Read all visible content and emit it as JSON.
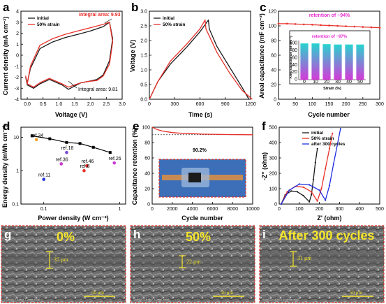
{
  "colors": {
    "initial": "#1a1a1a",
    "strain": "#e8312a",
    "after": "#1f2fe0",
    "retention": "#e82fd0",
    "bars_top": "#26d4d0",
    "bars_bottom": "#d43ad8",
    "sem_text": "#f5e62a",
    "sem_border": "#e8312a"
  },
  "panels": {
    "a": "a",
    "b": "b",
    "c": "c",
    "d": "d",
    "e": "e",
    "f": "f",
    "g": "g",
    "h": "h",
    "i": "i"
  },
  "chart_data": [
    {
      "id": "a",
      "type": "line",
      "xlabel": "Voltage (V)",
      "ylabel": "Current density (mA cm⁻²)",
      "xlim": [
        -0.2,
        3.0
      ],
      "ylim": [
        -4,
        4
      ],
      "xticks": [
        "0.0",
        "0.5",
        "1.0",
        "1.5",
        "2.0",
        "2.5",
        "3.0"
      ],
      "yticks": [
        "-4",
        "-3",
        "-2",
        "-1",
        "0",
        "1",
        "2",
        "3",
        "4"
      ],
      "legend": [
        "initial",
        "50% strain"
      ],
      "annotations": [
        "Integral area: 9.93",
        "Integral area: 9.81"
      ],
      "series": [
        {
          "name": "initial",
          "x": [
            0,
            0.1,
            0.4,
            0.8,
            1.2,
            1.6,
            2.0,
            2.4,
            2.6,
            2.7,
            2.6,
            2.4,
            2.2,
            1.9,
            1.7,
            1.5,
            1.3,
            1.1,
            0.7,
            0.4,
            0.2,
            0,
            -0.05,
            0
          ],
          "y": [
            -2.5,
            -1.2,
            0.6,
            1.2,
            1.6,
            1.9,
            2.2,
            2.6,
            3.0,
            1.5,
            -0.5,
            -1.8,
            -2.2,
            -2.4,
            -2.5,
            -2.8,
            -3.1,
            -2.7,
            -2.2,
            -2.6,
            -3.0,
            -2.7,
            -2.0,
            -2.5
          ]
        },
        {
          "name": "50% strain",
          "x": [
            0,
            0.1,
            0.4,
            0.8,
            1.2,
            1.6,
            2.0,
            2.4,
            2.6,
            2.7,
            2.6,
            2.4,
            2.2,
            1.9,
            1.7,
            1.5,
            1.3,
            1.1,
            0.7,
            0.4,
            0.2,
            0,
            -0.05,
            0
          ],
          "y": [
            -2.6,
            -1.0,
            0.9,
            1.5,
            1.9,
            2.2,
            2.5,
            2.8,
            3.0,
            1.2,
            -0.8,
            -1.9,
            -2.3,
            -2.4,
            -2.5,
            -2.7,
            -2.9,
            -2.6,
            -2.1,
            -2.5,
            -2.9,
            -2.6,
            -1.9,
            -2.6
          ]
        }
      ]
    },
    {
      "id": "b",
      "type": "line",
      "xlabel": "Time (s)",
      "ylabel": "Voltage (V)",
      "xlim": [
        0,
        1200
      ],
      "ylim": [
        0,
        3.0
      ],
      "xticks": [
        "0",
        "300",
        "600",
        "900",
        "1200"
      ],
      "yticks": [
        "0.0",
        "0.5",
        "1.0",
        "1.5",
        "2.0",
        "2.5",
        "3.0"
      ],
      "legend": [
        "initial",
        "50% strain"
      ],
      "series": [
        {
          "name": "initial",
          "x": [
            0,
            100,
            250,
            450,
            600,
            700,
            710,
            800,
            950,
            1100,
            1180
          ],
          "y": [
            0,
            0.6,
            1.2,
            1.8,
            2.3,
            2.7,
            2.4,
            1.8,
            1.1,
            0.4,
            0
          ]
        },
        {
          "name": "50% strain",
          "x": [
            0,
            100,
            250,
            450,
            600,
            660,
            670,
            800,
            950,
            1100,
            1220
          ],
          "y": [
            0,
            0.6,
            1.3,
            1.9,
            2.4,
            2.7,
            2.4,
            1.6,
            0.9,
            0.3,
            0
          ]
        }
      ]
    },
    {
      "id": "c",
      "type": "line",
      "xlabel": "Cycle number",
      "ylabel": "Areal capacitance (mF cm⁻²)",
      "xlim": [
        0,
        300
      ],
      "ylim": [
        0,
        120
      ],
      "xticks": [
        "0",
        "50",
        "100",
        "150",
        "200",
        "250",
        "300"
      ],
      "yticks": [
        "0",
        "20",
        "40",
        "60",
        "80",
        "100",
        "120"
      ],
      "annotations": [
        "retention of ~94%"
      ],
      "series": [
        {
          "name": "",
          "x": [
            0,
            25,
            50,
            75,
            100,
            125,
            150,
            175,
            200,
            225,
            250,
            275,
            300
          ],
          "y": [
            103,
            103,
            102.5,
            102,
            101.5,
            101,
            100.5,
            100,
            99.5,
            99,
            98.5,
            98,
            97.5
          ]
        }
      ],
      "inset": {
        "type": "bar",
        "xlabel": "Strain (%)",
        "ylabel": "Areal capacitance (mF cm⁻²)",
        "annotation": "retention of ~97%",
        "categories": [
          "0",
          "10",
          "20",
          "30",
          "40",
          "50"
        ],
        "values": [
          100,
          100,
          98,
          97,
          97,
          97
        ],
        "ylim": [
          0,
          100
        ],
        "yticks": [
          "0",
          "20",
          "40",
          "60",
          "80",
          "100"
        ]
      }
    },
    {
      "id": "d",
      "type": "scatter",
      "xlabel": "Power density (W cm⁻³)",
      "ylabel": "Energy density (mWh cm⁻³)",
      "xscale": "log",
      "yscale": "log",
      "xlim": [
        0.05,
        1.2
      ],
      "ylim": [
        0.1,
        20
      ],
      "xticks": [
        "0.1",
        "1"
      ],
      "yticks": [
        "0.1",
        "1",
        "10"
      ],
      "series": [
        {
          "name": "",
          "x": [
            0.07,
            0.12,
            0.2,
            0.3,
            0.45,
            0.75
          ],
          "y": [
            11,
            9,
            7,
            6.5,
            5,
            3.5
          ]
        }
      ],
      "refs": [
        {
          "label": "ref.34",
          "x": 0.08,
          "y": 8.5
        },
        {
          "label": "ref.18",
          "x": 0.2,
          "y": 3.5
        },
        {
          "label": "ref.36",
          "x": 0.17,
          "y": 1.6
        },
        {
          "label": "ref.46",
          "x": 0.37,
          "y": 1.4
        },
        {
          "label": "ref.8",
          "x": 0.34,
          "y": 1.0
        },
        {
          "label": "ref.26",
          "x": 0.85,
          "y": 1.7
        },
        {
          "label": "ref.11",
          "x": 0.1,
          "y": 0.55
        }
      ]
    },
    {
      "id": "e",
      "type": "line",
      "xlabel": "Cycle number",
      "ylabel": "Capacitance retention (%)",
      "xlim": [
        0,
        10000
      ],
      "ylim": [
        0,
        100
      ],
      "xticks": [
        "0",
        "2000",
        "4000",
        "6000",
        "8000",
        "10000"
      ],
      "yticks": [
        "0",
        "20",
        "40",
        "60",
        "80",
        "100"
      ],
      "annotations": [
        "90.2%"
      ],
      "series": [
        {
          "name": "",
          "x": [
            0,
            500,
            1000,
            2000,
            3000,
            4000,
            5000,
            6000,
            7000,
            8000,
            9000,
            10000
          ],
          "y": [
            100,
            97,
            95,
            93,
            92,
            91.5,
            91,
            90.8,
            90.5,
            90.4,
            90.3,
            90.2
          ]
        }
      ]
    },
    {
      "id": "f",
      "type": "line",
      "xlabel": "Z' (ohm)",
      "ylabel": "-Z'' (ohm)",
      "xlim": [
        0,
        500
      ],
      "ylim": [
        0,
        500
      ],
      "xticks": [
        "0",
        "100",
        "200",
        "300",
        "400",
        "500"
      ],
      "yticks": [
        "0",
        "100",
        "200",
        "300",
        "400",
        "500"
      ],
      "legend": [
        "initial",
        "50% strain",
        "after 300  cycles"
      ],
      "series": [
        {
          "name": "initial",
          "x": [
            10,
            30,
            60,
            90,
            120,
            150,
            160,
            170,
            180,
            190
          ],
          "y": [
            0,
            60,
            85,
            80,
            55,
            15,
            60,
            160,
            270,
            360
          ]
        },
        {
          "name": "50% strain",
          "x": [
            10,
            40,
            80,
            120,
            160,
            190,
            210,
            230,
            250,
            265
          ],
          "y": [
            0,
            80,
            115,
            110,
            80,
            20,
            100,
            230,
            360,
            460
          ]
        },
        {
          "name": "after 300  cycles",
          "x": [
            10,
            50,
            100,
            150,
            200,
            230,
            250,
            270,
            290,
            305
          ],
          "y": [
            0,
            90,
            130,
            125,
            90,
            25,
            120,
            260,
            390,
            490
          ]
        }
      ]
    }
  ],
  "sem": [
    {
      "letter": "g",
      "label": "0%",
      "thickness": "35 μm",
      "scale": "50 μm",
      "meta": "SU8020 15.0kV 7.2mm x500"
    },
    {
      "letter": "h",
      "label": "50%",
      "thickness": "22 μm",
      "scale": "50 μm",
      "meta": "SU8020 15.0kV 7.2mm x500"
    },
    {
      "letter": "i",
      "label": "After 300 cycles",
      "thickness": "31 μm",
      "scale": "50 μm",
      "meta": "SU8020 15.0kV 11.8mm x500"
    }
  ]
}
